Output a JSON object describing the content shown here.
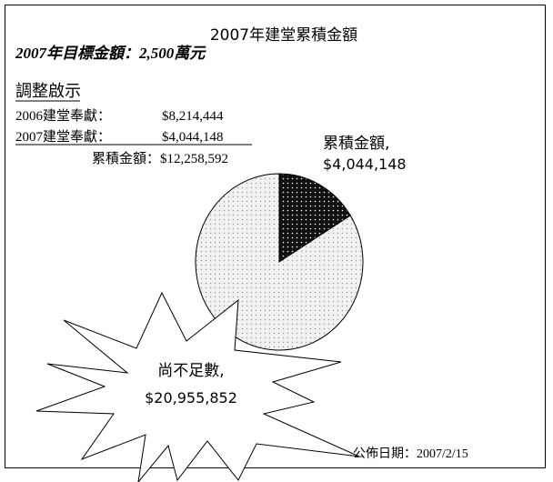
{
  "chart_data": {
    "type": "pie",
    "title": "2007年建堂累積金額",
    "subtitle": "2007年目標金額：2,500萬元",
    "categories": [
      "累積金額,",
      "尚不足數,"
    ],
    "values": [
      4044148,
      20955852
    ],
    "value_labels": [
      "$4,044,148",
      "$20,955,852"
    ],
    "colors": [
      "#111111",
      "#f2f2f2"
    ],
    "notes": {
      "heading": "調整啟示",
      "rows": [
        [
          "2006建堂奉獻：",
          "$8,214,444"
        ],
        [
          "2007建堂奉獻：",
          "$4,044,148"
        ]
      ],
      "total": [
        "累積金額：",
        "$12,258,592"
      ]
    },
    "date": "公佈日期：2007/2/15"
  }
}
